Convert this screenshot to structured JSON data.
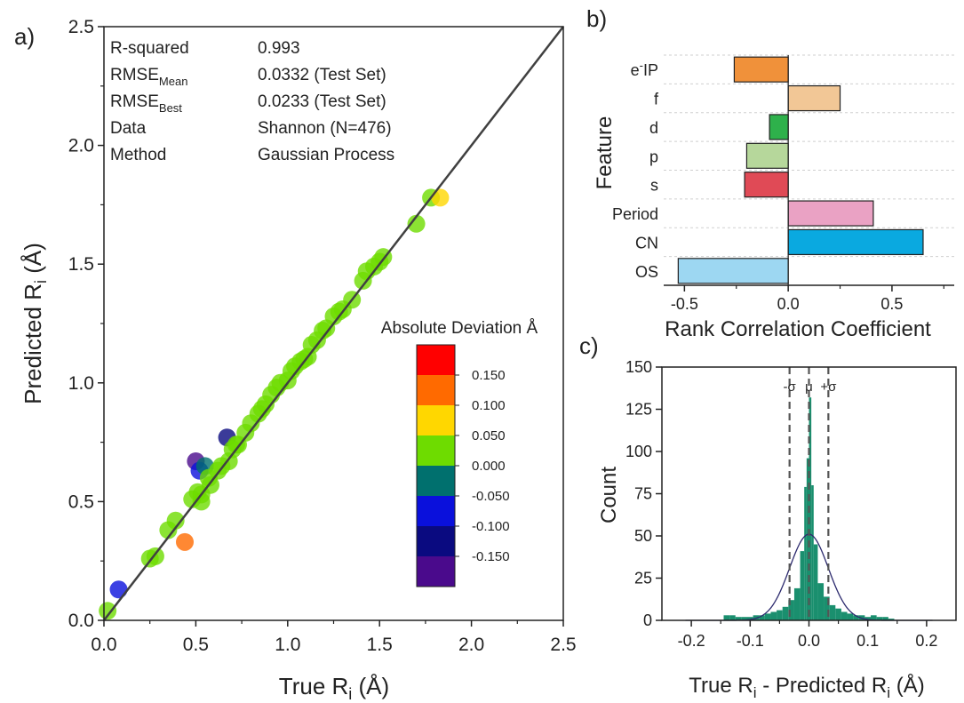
{
  "chart_data": [
    {
      "panel_label": "a)",
      "type": "scatter",
      "xlabel_main": "True R",
      "xlabel_sub": "i",
      "xlabel_unit": " (Å)",
      "ylabel_main": "Predicted R",
      "ylabel_sub": "i",
      "ylabel_unit": " (Å)",
      "xlim": [
        0,
        2.5
      ],
      "ylim": [
        0,
        2.5
      ],
      "xticks": [
        "0.0",
        "0.5",
        "1.0",
        "1.5",
        "2.0",
        "2.5"
      ],
      "yticks": [
        "0.0",
        "0.5",
        "1.0",
        "1.5",
        "2.0",
        "2.5"
      ],
      "stats": [
        {
          "key": "R-squared",
          "sub": "",
          "value": "0.993"
        },
        {
          "key": "RMSE",
          "sub": "Mean",
          "value": "0.0332  (Test Set)"
        },
        {
          "key": "RMSE",
          "sub": "Best",
          "value": "0.0233  (Test Set)"
        },
        {
          "key": "Data",
          "sub": "",
          "value": "Shannon (N=476)"
        },
        {
          "key": "Method",
          "sub": "",
          "value": "Gaussian Process"
        }
      ],
      "colorbar": {
        "title": "Absolute Deviation Å",
        "ticks": [
          "0.150",
          "0.100",
          "0.050",
          "0.000",
          "-0.050",
          "-0.100",
          "-0.150"
        ],
        "colors": [
          "#ff0000",
          "#ff6a00",
          "#ffd700",
          "#6edc00",
          "#00706e",
          "#0a10dc",
          "#0a0a80",
          "#4a0a8c"
        ]
      },
      "points": [
        [
          0.02,
          0.04,
          0.0
        ],
        [
          0.08,
          0.13,
          -0.05
        ],
        [
          0.25,
          0.26,
          0.0
        ],
        [
          0.28,
          0.27,
          0.03
        ],
        [
          0.44,
          0.33,
          0.11
        ],
        [
          0.35,
          0.38,
          0.0
        ],
        [
          0.39,
          0.42,
          -0.01
        ],
        [
          0.5,
          0.67,
          -0.17
        ],
        [
          0.52,
          0.63,
          -0.06
        ],
        [
          0.55,
          0.65,
          -0.03
        ],
        [
          0.48,
          0.51,
          -0.01
        ],
        [
          0.53,
          0.5,
          0.02
        ],
        [
          0.51,
          0.54,
          0.0
        ],
        [
          0.53,
          0.53,
          0.01
        ],
        [
          0.58,
          0.57,
          0.01
        ],
        [
          0.57,
          0.6,
          0.0
        ],
        [
          0.62,
          0.63,
          0.0
        ],
        [
          0.64,
          0.65,
          0.01
        ],
        [
          0.67,
          0.77,
          -0.12
        ],
        [
          0.68,
          0.67,
          0.01
        ],
        [
          0.7,
          0.72,
          0.02
        ],
        [
          0.72,
          0.74,
          0.0
        ],
        [
          0.73,
          0.74,
          0.01
        ],
        [
          0.77,
          0.79,
          0.0
        ],
        [
          0.8,
          0.83,
          0.0
        ],
        [
          0.84,
          0.87,
          0.01
        ],
        [
          0.86,
          0.89,
          0.0
        ],
        [
          0.88,
          0.91,
          0.0
        ],
        [
          0.91,
          0.95,
          0.01
        ],
        [
          0.94,
          0.98,
          0.02
        ],
        [
          0.96,
          1.0,
          0.01
        ],
        [
          1.0,
          1.01,
          0.0
        ],
        [
          1.02,
          1.05,
          0.0
        ],
        [
          1.04,
          1.07,
          0.0
        ],
        [
          1.07,
          1.09,
          0.0
        ],
        [
          1.09,
          1.1,
          0.0
        ],
        [
          1.11,
          1.11,
          0.01
        ],
        [
          1.13,
          1.16,
          0.0
        ],
        [
          1.16,
          1.18,
          0.01
        ],
        [
          1.19,
          1.22,
          0.0
        ],
        [
          1.21,
          1.23,
          0.02
        ],
        [
          1.25,
          1.28,
          0.01
        ],
        [
          1.28,
          1.3,
          0.0
        ],
        [
          1.3,
          1.31,
          0.02
        ],
        [
          1.35,
          1.35,
          0.02
        ],
        [
          1.41,
          1.43,
          0.01
        ],
        [
          1.43,
          1.47,
          0.01
        ],
        [
          1.47,
          1.49,
          0.02
        ],
        [
          1.5,
          1.51,
          0.0
        ],
        [
          1.52,
          1.53,
          0.02
        ],
        [
          1.7,
          1.67,
          0.03
        ],
        [
          1.78,
          1.78,
          0.02
        ],
        [
          1.83,
          1.78,
          0.05
        ]
      ]
    },
    {
      "panel_label": "b)",
      "type": "bar",
      "orientation": "horizontal",
      "ylabel": "Feature",
      "xlabel": "Rank Correlation Coefficient",
      "xlim": [
        -0.6,
        0.8
      ],
      "xticks": [
        "-0.5",
        "0.0",
        "0.5"
      ],
      "categories": [
        {
          "main": "e",
          "sup": "-",
          "rest": "IP"
        },
        {
          "main": "f",
          "sup": "",
          "rest": ""
        },
        {
          "main": "d",
          "sup": "",
          "rest": ""
        },
        {
          "main": "p",
          "sup": "",
          "rest": ""
        },
        {
          "main": "s",
          "sup": "",
          "rest": ""
        },
        {
          "main": "Period",
          "sup": "",
          "rest": ""
        },
        {
          "main": "CN",
          "sup": "",
          "rest": ""
        },
        {
          "main": "OS",
          "sup": "",
          "rest": ""
        }
      ],
      "values": [
        -0.26,
        0.25,
        -0.09,
        -0.2,
        -0.21,
        0.41,
        0.65,
        -0.53
      ],
      "colors": [
        "#f0913a",
        "#f2c796",
        "#2eb14b",
        "#b6d79b",
        "#e04a56",
        "#eaa2c4",
        "#0aa9e0",
        "#9dd7f2"
      ]
    },
    {
      "panel_label": "c)",
      "type": "histogram",
      "xlabel_main": "True R",
      "xlabel_sub1": "i",
      "xlabel_mid": " - Predicted R",
      "xlabel_sub2": "i",
      "xlabel_unit": "  (Å)",
      "ylabel": "Count",
      "xlim": [
        -0.25,
        0.25
      ],
      "ylim": [
        0,
        150
      ],
      "xticks": [
        "-0.2",
        "-0.1",
        "0.0",
        "0.1",
        "0.2"
      ],
      "yticks": [
        "0",
        "25",
        "50",
        "75",
        "100",
        "125",
        "150"
      ],
      "bar_color": "#1a8f6e",
      "bins": [
        [
          -0.145,
          -0.135,
          3
        ],
        [
          -0.135,
          -0.125,
          3
        ],
        [
          -0.125,
          -0.115,
          2
        ],
        [
          -0.115,
          -0.105,
          2
        ],
        [
          -0.105,
          -0.095,
          2
        ],
        [
          -0.095,
          -0.085,
          3
        ],
        [
          -0.085,
          -0.075,
          3
        ],
        [
          -0.075,
          -0.065,
          4
        ],
        [
          -0.065,
          -0.055,
          5
        ],
        [
          -0.055,
          -0.045,
          6
        ],
        [
          -0.045,
          -0.035,
          8
        ],
        [
          -0.035,
          -0.025,
          12
        ],
        [
          -0.025,
          -0.015,
          19
        ],
        [
          -0.015,
          -0.008,
          41
        ],
        [
          -0.008,
          -0.004,
          79
        ],
        [
          -0.004,
          0.0,
          96
        ],
        [
          0.0,
          0.004,
          132
        ],
        [
          0.004,
          0.008,
          80
        ],
        [
          0.008,
          0.015,
          45
        ],
        [
          0.015,
          0.025,
          22
        ],
        [
          0.025,
          0.035,
          14
        ],
        [
          0.035,
          0.045,
          9
        ],
        [
          0.045,
          0.055,
          7
        ],
        [
          0.055,
          0.065,
          5
        ],
        [
          0.065,
          0.075,
          4
        ],
        [
          0.075,
          0.085,
          3
        ],
        [
          0.085,
          0.095,
          3
        ],
        [
          0.095,
          0.105,
          2
        ],
        [
          0.105,
          0.115,
          3
        ],
        [
          0.115,
          0.125,
          2
        ],
        [
          0.125,
          0.135,
          2
        ],
        [
          0.135,
          0.145,
          1
        ]
      ],
      "normal_fit": {
        "mu": 0.0,
        "sigma": 0.033,
        "peak": 51
      },
      "vlines": [
        {
          "x": -0.033,
          "label": "-σ"
        },
        {
          "x": 0.0,
          "label": "μ"
        },
        {
          "x": 0.033,
          "label": "+σ"
        }
      ]
    }
  ]
}
